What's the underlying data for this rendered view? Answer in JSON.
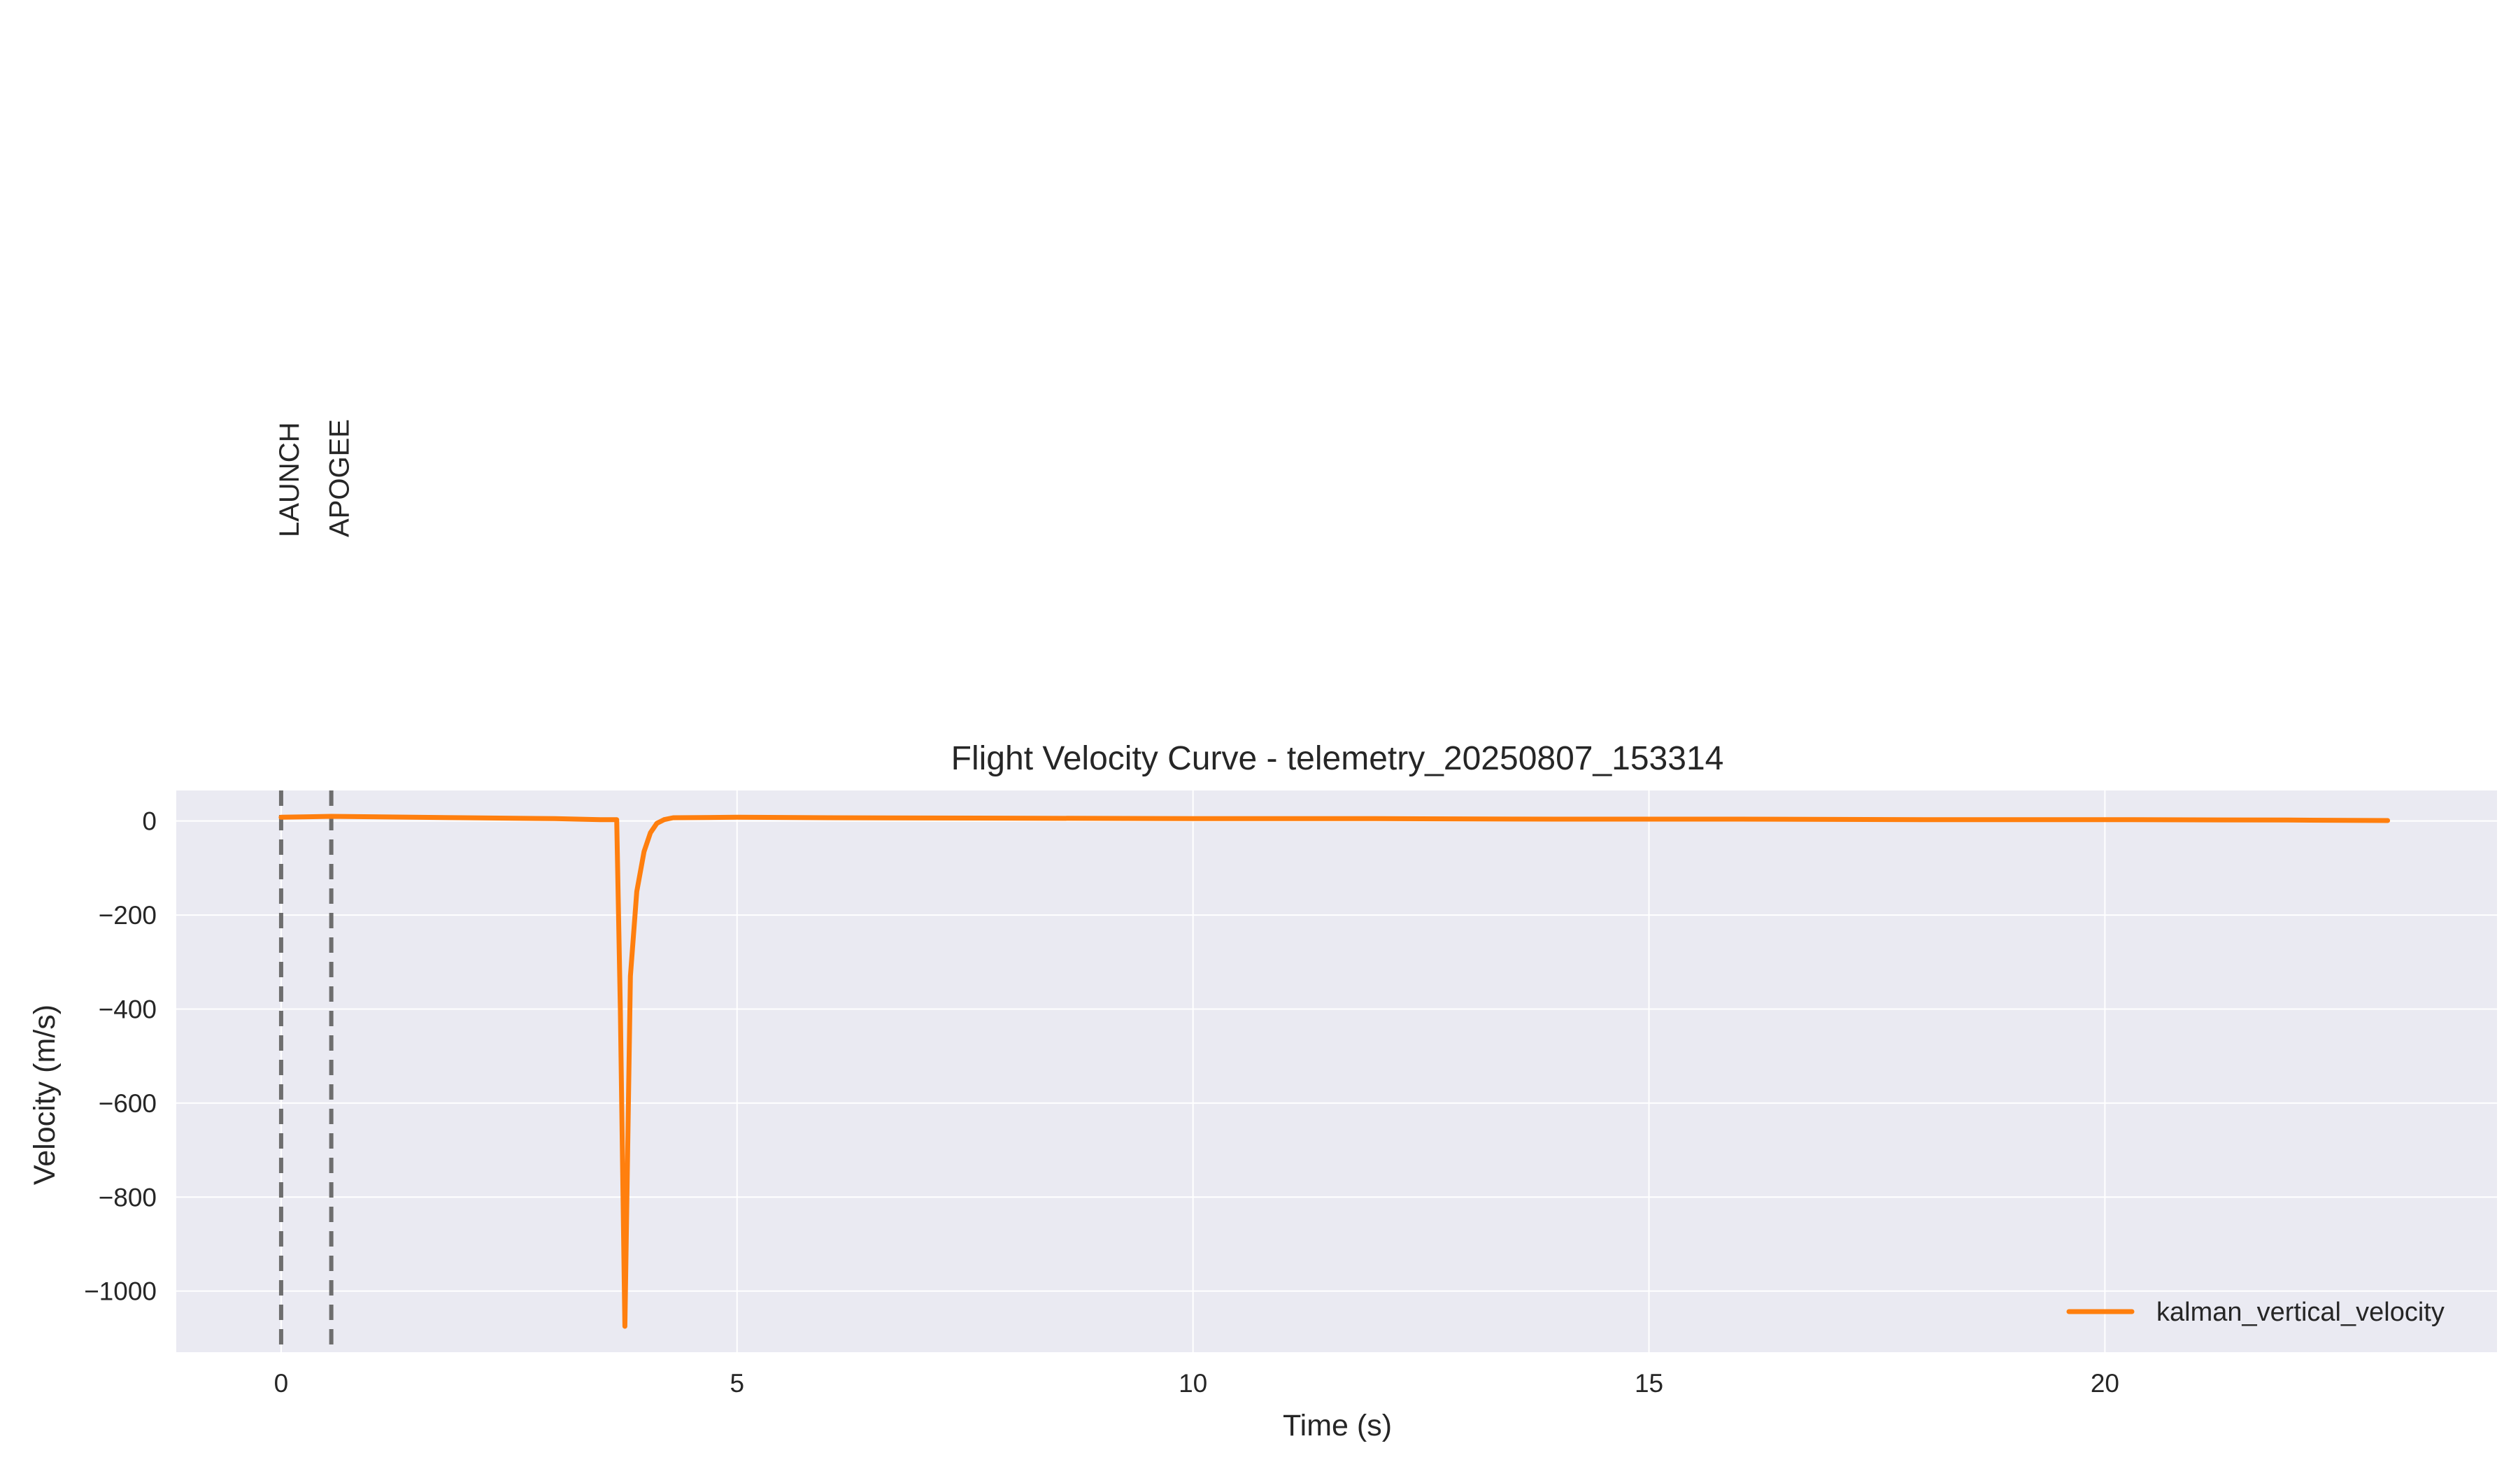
{
  "chart_data": {
    "type": "line",
    "title": "Flight Velocity Curve - telemetry_20250807_153314",
    "xlabel": "Time (s)",
    "ylabel": "Velocity (m/s)",
    "xlim": [
      -1.15,
      24.3
    ],
    "ylim": [
      -1130,
      65
    ],
    "xticks": [
      0,
      5,
      10,
      15,
      20
    ],
    "yticks": [
      0,
      -200,
      -400,
      -600,
      -800,
      -1000
    ],
    "xtick_labels": [
      "0",
      "5",
      "10",
      "15",
      "20"
    ],
    "ytick_labels": [
      "0",
      "−200",
      "−400",
      "−600",
      "−800",
      "−1000"
    ],
    "grid": true,
    "legend_position": "lower-right",
    "background_color": "#eaeaf2",
    "grid_color": "#ffffff",
    "events": [
      {
        "label": "LAUNCH",
        "x": 0.0,
        "color": "#6e6e6e"
      },
      {
        "label": "APOGEE",
        "x": 0.55,
        "color": "#6e6e6e"
      }
    ],
    "series": [
      {
        "name": "kalman_vertical_velocity",
        "color": "#ff7f0e",
        "x": [
          0,
          0.3,
          0.55,
          1.0,
          2.0,
          3.0,
          3.5,
          3.68,
          3.72,
          3.77,
          3.83,
          3.9,
          3.98,
          4.05,
          4.12,
          4.2,
          4.3,
          5.0,
          6.0,
          8.0,
          10.0,
          12.0,
          14.0,
          16.0,
          18.0,
          20.0,
          22.0,
          23.1
        ],
        "y": [
          8,
          9,
          10,
          9,
          7,
          5,
          3,
          3,
          -400,
          -1075,
          -330,
          -150,
          -65,
          -25,
          -5,
          3,
          7,
          8,
          7,
          6,
          5,
          5,
          4,
          4,
          3,
          3,
          2,
          1
        ]
      }
    ]
  }
}
